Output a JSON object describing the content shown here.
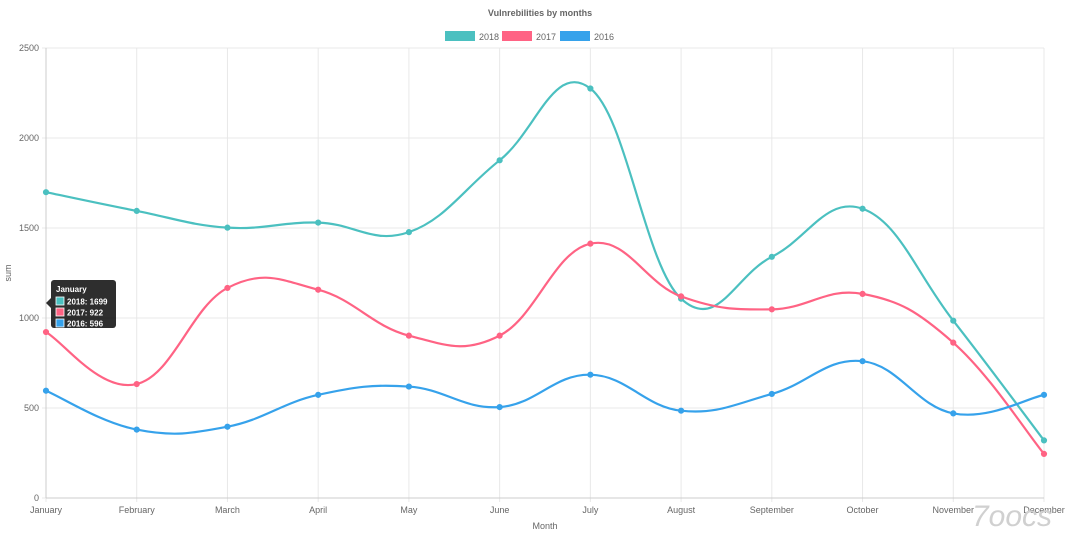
{
  "chart_data": {
    "type": "line",
    "title": "Vulnrebilities by months",
    "xlabel": "Month",
    "ylabel": "sum",
    "ylim": [
      0,
      2500
    ],
    "yticks": [
      0,
      500,
      1000,
      1500,
      2000,
      2500
    ],
    "grid": true,
    "legend_position": "top",
    "categories": [
      "January",
      "February",
      "March",
      "April",
      "May",
      "June",
      "July",
      "August",
      "September",
      "October",
      "November",
      "December"
    ],
    "series": [
      {
        "name": "2018",
        "color": "#4bc0c0",
        "values": [
          1699,
          1595,
          1502,
          1530,
          1477,
          1876,
          2275,
          1107,
          1340,
          1607,
          985,
          320
        ]
      },
      {
        "name": "2017",
        "color": "#ff6384",
        "values": [
          922,
          633,
          1167,
          1157,
          902,
          902,
          1413,
          1120,
          1048,
          1134,
          863,
          245
        ]
      },
      {
        "name": "2016",
        "color": "#36a2eb",
        "values": [
          596,
          380,
          396,
          573,
          619,
          505,
          685,
          485,
          578,
          760,
          470,
          573
        ]
      }
    ],
    "tooltip": {
      "title": "January",
      "lines": [
        "2018: 1699",
        "2017: 922",
        "2016: 596"
      ]
    }
  },
  "watermark": {
    "text": "7oocs"
  }
}
